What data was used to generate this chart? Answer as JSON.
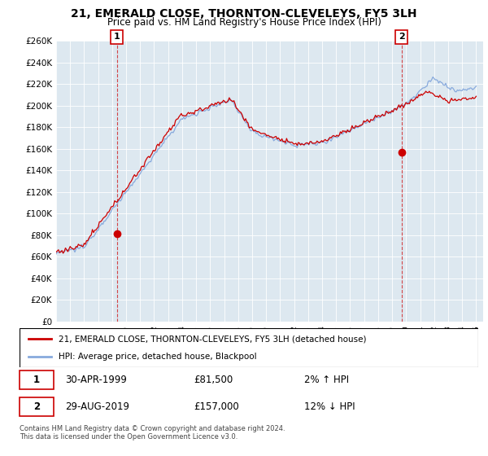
{
  "title": "21, EMERALD CLOSE, THORNTON-CLEVELEYS, FY5 3LH",
  "subtitle": "Price paid vs. HM Land Registry's House Price Index (HPI)",
  "ylabel_ticks": [
    "£0",
    "£20K",
    "£40K",
    "£60K",
    "£80K",
    "£100K",
    "£120K",
    "£140K",
    "£160K",
    "£180K",
    "£200K",
    "£220K",
    "£240K",
    "£260K"
  ],
  "ylim": [
    0,
    260000
  ],
  "xlim_start": 1995.0,
  "xlim_end": 2025.5,
  "sale1_x": 1999.33,
  "sale1_y": 81500,
  "sale1_label": "1",
  "sale2_x": 2019.67,
  "sale2_y": 157000,
  "sale2_label": "2",
  "legend_line1": "21, EMERALD CLOSE, THORNTON-CLEVELEYS, FY5 3LH (detached house)",
  "legend_line2": "HPI: Average price, detached house, Blackpool",
  "table_row1_num": "1",
  "table_row1_date": "30-APR-1999",
  "table_row1_price": "£81,500",
  "table_row1_hpi": "2% ↑ HPI",
  "table_row2_num": "2",
  "table_row2_date": "29-AUG-2019",
  "table_row2_price": "£157,000",
  "table_row2_hpi": "12% ↓ HPI",
  "footer": "Contains HM Land Registry data © Crown copyright and database right 2024.\nThis data is licensed under the Open Government Licence v3.0.",
  "line_color_red": "#cc0000",
  "line_color_blue": "#88aadd",
  "annotation_box_color": "#cc0000",
  "plot_bg_color": "#dde8f0",
  "background_color": "#ffffff",
  "grid_color": "#ffffff"
}
